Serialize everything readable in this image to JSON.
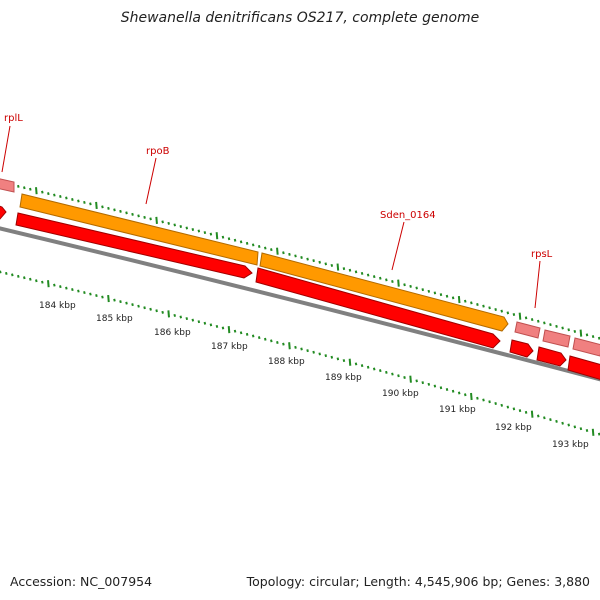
{
  "title": "Shewanella denitrificans OS217, complete genome",
  "footer": {
    "accession": "Accession: NC_007954",
    "topology": "Topology: circular; Length: 4,545,906 bp; Genes: 3,880"
  },
  "gene_labels": [
    "rplL",
    "rpoB",
    "Sden_0164",
    "rpsL"
  ],
  "kbp_labels": [
    "184 kbp",
    "185 kbp",
    "186 kbp",
    "187 kbp",
    "188 kbp",
    "189 kbp",
    "190 kbp",
    "191 kbp",
    "192 kbp",
    "193 kbp"
  ],
  "colors": {
    "cds": "#ff0000",
    "rna": "#f08080",
    "gene_orange": "#ff9900",
    "backbone": "#808080",
    "ticks": "#228b22",
    "label": "#cc0000"
  }
}
